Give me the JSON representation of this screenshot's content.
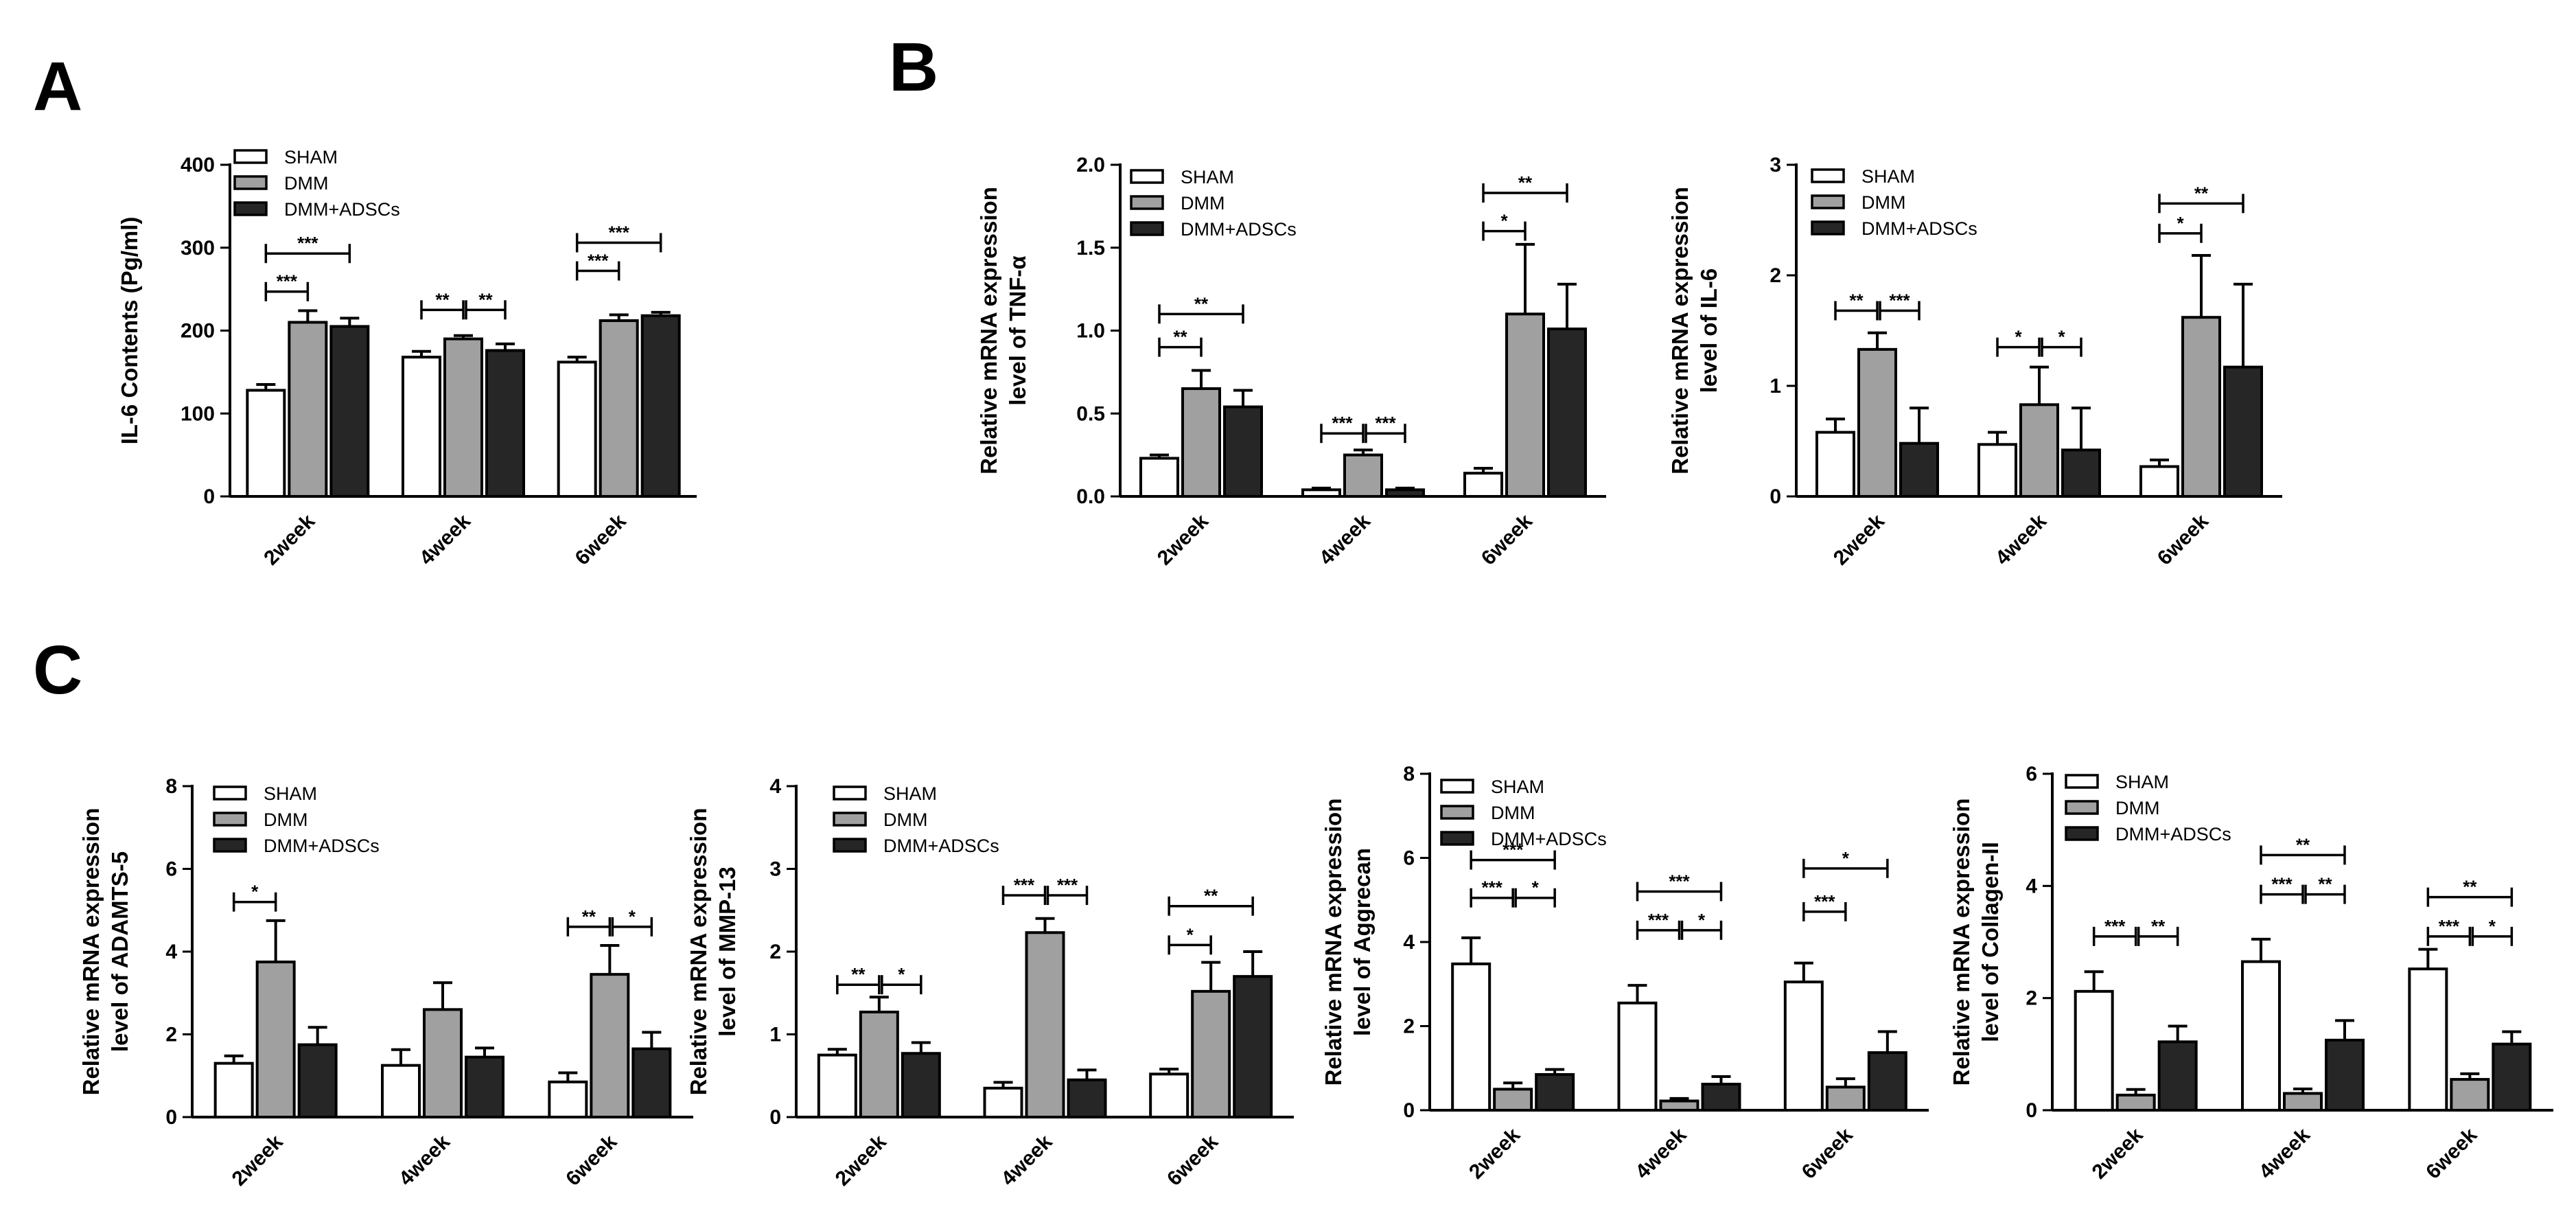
{
  "panels": [
    {
      "letter": "A"
    },
    {
      "letter": "B"
    },
    {
      "letter": "C"
    }
  ],
  "colors": {
    "SHAM": "#ffffff",
    "DMM": "#a0a0a0",
    "DMM+ADSCs": "#262626",
    "stroke": "#000000"
  },
  "chart_data": [
    {
      "type": "bar",
      "panel": "A",
      "ylabel": [
        "IL-6 Contents (Pg/ml)"
      ],
      "categories": [
        "2week",
        "4week",
        "6week"
      ],
      "ylim": [
        0,
        400
      ],
      "yticks": [
        0,
        100,
        200,
        300,
        400
      ],
      "series": [
        {
          "name": "SHAM",
          "values": [
            128,
            168,
            162
          ],
          "errors": [
            7,
            7,
            6
          ]
        },
        {
          "name": "DMM",
          "values": [
            210,
            190,
            212
          ],
          "errors": [
            14,
            4,
            7
          ]
        },
        {
          "name": "DMM+ADSCs",
          "values": [
            205,
            176,
            218
          ],
          "errors": [
            10,
            8,
            4
          ]
        }
      ],
      "significance": [
        {
          "category": 0,
          "from": 0,
          "to": 1,
          "label": "***",
          "y": 247
        },
        {
          "category": 0,
          "from": 0,
          "to": 2,
          "label": "***",
          "y": 293
        },
        {
          "category": 1,
          "from": 0,
          "to": 1,
          "label": "**",
          "y": 225
        },
        {
          "category": 1,
          "from": 1,
          "to": 2,
          "label": "**",
          "y": 225
        },
        {
          "category": 2,
          "from": 0,
          "to": 1,
          "label": "***",
          "y": 272
        },
        {
          "category": 2,
          "from": 0,
          "to": 2,
          "label": "***",
          "y": 306
        }
      ]
    },
    {
      "type": "bar",
      "panel": "B",
      "ylabel": [
        "Relative mRNA expression",
        "level of TNF-α"
      ],
      "categories": [
        "2week",
        "4week",
        "6week"
      ],
      "ylim": [
        0,
        2.0
      ],
      "yticks": [
        0.0,
        0.5,
        1.0,
        1.5,
        2.0
      ],
      "series": [
        {
          "name": "SHAM",
          "values": [
            0.23,
            0.04,
            0.14
          ],
          "errors": [
            0.02,
            0.01,
            0.03
          ]
        },
        {
          "name": "DMM",
          "values": [
            0.65,
            0.25,
            1.1
          ],
          "errors": [
            0.11,
            0.03,
            0.42
          ]
        },
        {
          "name": "DMM+ADSCs",
          "values": [
            0.54,
            0.04,
            1.01
          ],
          "errors": [
            0.1,
            0.01,
            0.27
          ]
        }
      ],
      "significance": [
        {
          "category": 0,
          "from": 0,
          "to": 1,
          "label": "**",
          "y": 0.9
        },
        {
          "category": 0,
          "from": 0,
          "to": 2,
          "label": "**",
          "y": 1.1
        },
        {
          "category": 1,
          "from": 0,
          "to": 1,
          "label": "***",
          "y": 0.38
        },
        {
          "category": 1,
          "from": 1,
          "to": 2,
          "label": "***",
          "y": 0.38
        },
        {
          "category": 2,
          "from": 0,
          "to": 1,
          "label": "*",
          "y": 1.6
        },
        {
          "category": 2,
          "from": 0,
          "to": 2,
          "label": "**",
          "y": 1.83
        }
      ]
    },
    {
      "type": "bar",
      "panel": "B",
      "ylabel": [
        "Relative mRNA expression",
        "level of IL-6"
      ],
      "categories": [
        "2week",
        "4week",
        "6week"
      ],
      "ylim": [
        0,
        3
      ],
      "yticks": [
        0,
        1,
        2,
        3
      ],
      "series": [
        {
          "name": "SHAM",
          "values": [
            0.58,
            0.47,
            0.27
          ],
          "errors": [
            0.12,
            0.11,
            0.06
          ]
        },
        {
          "name": "DMM",
          "values": [
            1.33,
            0.83,
            1.62
          ],
          "errors": [
            0.15,
            0.34,
            0.56
          ]
        },
        {
          "name": "DMM+ADSCs",
          "values": [
            0.48,
            0.42,
            1.17
          ],
          "errors": [
            0.32,
            0.38,
            0.75
          ]
        }
      ],
      "significance": [
        {
          "category": 0,
          "from": 0,
          "to": 1,
          "label": "**",
          "y": 1.68
        },
        {
          "category": 0,
          "from": 1,
          "to": 2,
          "label": "***",
          "y": 1.68
        },
        {
          "category": 1,
          "from": 0,
          "to": 1,
          "label": "*",
          "y": 1.35
        },
        {
          "category": 1,
          "from": 1,
          "to": 2,
          "label": "*",
          "y": 1.35
        },
        {
          "category": 2,
          "from": 0,
          "to": 1,
          "label": "*",
          "y": 2.38
        },
        {
          "category": 2,
          "from": 0,
          "to": 2,
          "label": "**",
          "y": 2.65
        }
      ]
    },
    {
      "type": "bar",
      "panel": "C",
      "ylabel": [
        "Relative mRNA expression",
        "level of ADAMTS-5"
      ],
      "categories": [
        "2week",
        "4week",
        "6week"
      ],
      "ylim": [
        0,
        8
      ],
      "yticks": [
        0,
        2,
        4,
        6,
        8
      ],
      "series": [
        {
          "name": "SHAM",
          "values": [
            1.3,
            1.25,
            0.85
          ],
          "errors": [
            0.18,
            0.38,
            0.22
          ]
        },
        {
          "name": "DMM",
          "values": [
            3.75,
            2.6,
            3.45
          ],
          "errors": [
            1.0,
            0.65,
            0.7
          ]
        },
        {
          "name": "DMM+ADSCs",
          "values": [
            1.75,
            1.45,
            1.65
          ],
          "errors": [
            0.42,
            0.22,
            0.4
          ]
        }
      ],
      "significance": [
        {
          "category": 0,
          "from": 0,
          "to": 1,
          "label": "*",
          "y": 5.2
        },
        {
          "category": 2,
          "from": 0,
          "to": 1,
          "label": "**",
          "y": 4.6
        },
        {
          "category": 2,
          "from": 1,
          "to": 2,
          "label": "*",
          "y": 4.6
        }
      ]
    },
    {
      "type": "bar",
      "panel": "C",
      "ylabel": [
        "Relative mRNA expression",
        "level of MMP-13"
      ],
      "categories": [
        "2week",
        "4week",
        "6week"
      ],
      "ylim": [
        0,
        4
      ],
      "yticks": [
        0,
        1,
        2,
        3,
        4
      ],
      "series": [
        {
          "name": "SHAM",
          "values": [
            0.75,
            0.35,
            0.52
          ],
          "errors": [
            0.07,
            0.07,
            0.06
          ]
        },
        {
          "name": "DMM",
          "values": [
            1.27,
            2.23,
            1.52
          ],
          "errors": [
            0.18,
            0.17,
            0.35
          ]
        },
        {
          "name": "DMM+ADSCs",
          "values": [
            0.77,
            0.45,
            1.7
          ],
          "errors": [
            0.13,
            0.12,
            0.3
          ]
        }
      ],
      "significance": [
        {
          "category": 0,
          "from": 0,
          "to": 1,
          "label": "**",
          "y": 1.6
        },
        {
          "category": 0,
          "from": 1,
          "to": 2,
          "label": "*",
          "y": 1.6
        },
        {
          "category": 1,
          "from": 0,
          "to": 1,
          "label": "***",
          "y": 2.68
        },
        {
          "category": 1,
          "from": 1,
          "to": 2,
          "label": "***",
          "y": 2.68
        },
        {
          "category": 2,
          "from": 0,
          "to": 1,
          "label": "*",
          "y": 2.08
        },
        {
          "category": 2,
          "from": 0,
          "to": 2,
          "label": "**",
          "y": 2.55
        }
      ]
    },
    {
      "type": "bar",
      "panel": "C",
      "ylabel": [
        "Relative mRNA expression",
        "level of Aggrecan"
      ],
      "categories": [
        "2week",
        "4week",
        "6week"
      ],
      "ylim": [
        0,
        8
      ],
      "yticks": [
        0,
        2,
        4,
        6,
        8
      ],
      "series": [
        {
          "name": "SHAM",
          "values": [
            3.48,
            2.55,
            3.05
          ],
          "errors": [
            0.62,
            0.42,
            0.45
          ]
        },
        {
          "name": "DMM",
          "values": [
            0.5,
            0.22,
            0.55
          ],
          "errors": [
            0.15,
            0.06,
            0.2
          ]
        },
        {
          "name": "DMM+ADSCs",
          "values": [
            0.85,
            0.62,
            1.37
          ],
          "errors": [
            0.12,
            0.18,
            0.5
          ]
        }
      ],
      "significance": [
        {
          "category": 0,
          "from": 0,
          "to": 1,
          "label": "***",
          "y": 5.05
        },
        {
          "category": 0,
          "from": 1,
          "to": 2,
          "label": "*",
          "y": 5.05
        },
        {
          "category": 0,
          "from": 0,
          "to": 2,
          "label": "***",
          "y": 5.95
        },
        {
          "category": 1,
          "from": 0,
          "to": 1,
          "label": "***",
          "y": 4.28
        },
        {
          "category": 1,
          "from": 1,
          "to": 2,
          "label": "*",
          "y": 4.28
        },
        {
          "category": 1,
          "from": 0,
          "to": 2,
          "label": "***",
          "y": 5.2
        },
        {
          "category": 2,
          "from": 0,
          "to": 1,
          "label": "***",
          "y": 4.72
        },
        {
          "category": 2,
          "from": 0,
          "to": 2,
          "label": "*",
          "y": 5.75
        }
      ]
    },
    {
      "type": "bar",
      "panel": "C",
      "ylabel": [
        "Relative mRNA expression",
        "level of Collagen-II"
      ],
      "categories": [
        "2week",
        "4week",
        "6week"
      ],
      "ylim": [
        0,
        6
      ],
      "yticks": [
        0,
        2,
        4,
        6
      ],
      "series": [
        {
          "name": "SHAM",
          "values": [
            2.12,
            2.65,
            2.52
          ],
          "errors": [
            0.35,
            0.4,
            0.35
          ]
        },
        {
          "name": "DMM",
          "values": [
            0.27,
            0.3,
            0.55
          ],
          "errors": [
            0.1,
            0.08,
            0.1
          ]
        },
        {
          "name": "DMM+ADSCs",
          "values": [
            1.22,
            1.25,
            1.18
          ],
          "errors": [
            0.28,
            0.35,
            0.22
          ]
        }
      ],
      "significance": [
        {
          "category": 0,
          "from": 0,
          "to": 1,
          "label": "***",
          "y": 3.1
        },
        {
          "category": 0,
          "from": 1,
          "to": 2,
          "label": "**",
          "y": 3.1
        },
        {
          "category": 1,
          "from": 0,
          "to": 1,
          "label": "***",
          "y": 3.85
        },
        {
          "category": 1,
          "from": 1,
          "to": 2,
          "label": "**",
          "y": 3.85
        },
        {
          "category": 1,
          "from": 0,
          "to": 2,
          "label": "**",
          "y": 4.55
        },
        {
          "category": 2,
          "from": 0,
          "to": 1,
          "label": "***",
          "y": 3.1
        },
        {
          "category": 2,
          "from": 1,
          "to": 2,
          "label": "*",
          "y": 3.1
        },
        {
          "category": 2,
          "from": 0,
          "to": 2,
          "label": "**",
          "y": 3.8
        }
      ]
    }
  ]
}
